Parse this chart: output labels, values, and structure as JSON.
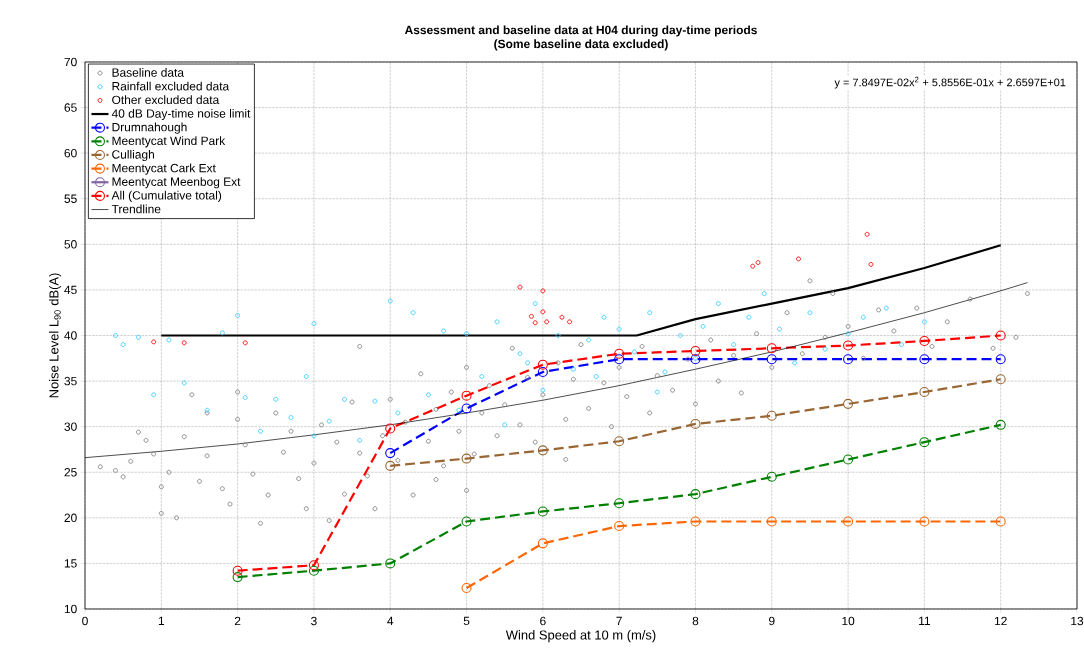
{
  "chart_data": {
    "type": "scatter",
    "title": "Assessment and baseline data at H04 during day-time periods",
    "subtitle": "(Some baseline data excluded)",
    "xlabel": "Wind Speed at 10 m (m/s)",
    "ylabel": "Noise Level L$_{90}$ dB(A)",
    "xlim": [
      0,
      13
    ],
    "ylim": [
      10,
      70
    ],
    "xticks": [
      0,
      1,
      2,
      3,
      4,
      5,
      6,
      7,
      8,
      9,
      10,
      11,
      12,
      13
    ],
    "yticks": [
      10,
      15,
      20,
      25,
      30,
      35,
      40,
      45,
      50,
      55,
      60,
      65,
      70
    ],
    "grid": true,
    "legend": "top left",
    "annotations": [
      "y = 7.8497E-02x$^{2}$ + 5.8556E-01x + 2.6597E+01"
    ],
    "series": [
      {
        "name": "Baseline data",
        "color": "#808080",
        "marker": "circle",
        "x": [
          0.2,
          0.4,
          0.5,
          0.6,
          0.7,
          0.8,
          0.9,
          1.0,
          1.0,
          1.1,
          1.2,
          1.3,
          1.4,
          1.5,
          1.6,
          1.8,
          1.9,
          2.0,
          2.1,
          2.2,
          2.3,
          2.4,
          2.5,
          2.6,
          2.7,
          2.8,
          2.9,
          3.0,
          3.1,
          3.2,
          3.3,
          3.4,
          3.5,
          3.6,
          3.7,
          3.8,
          3.9,
          4.0,
          4.1,
          4.2,
          4.3,
          4.4,
          4.5,
          4.6,
          4.7,
          4.8,
          4.9,
          5.0,
          5.1,
          5.2,
          5.3,
          5.4,
          5.5,
          5.6,
          5.7,
          5.8,
          5.9,
          6.0,
          6.2,
          6.3,
          6.4,
          6.5,
          6.6,
          6.8,
          6.9,
          7.0,
          7.1,
          7.3,
          7.4,
          7.5,
          7.7,
          7.9,
          8.0,
          8.2,
          8.3,
          8.5,
          8.6,
          8.8,
          9.0,
          9.2,
          9.4,
          9.5,
          9.7,
          9.8,
          10.0,
          10.2,
          10.4,
          10.6,
          10.9,
          11.1,
          11.3,
          11.6,
          11.9,
          12.2,
          12.35,
          3.6,
          2.0,
          1.6,
          5.0,
          4.6,
          6.3
        ],
        "values": [
          25.6,
          25.2,
          24.5,
          26.2,
          29.4,
          28.5,
          27.0,
          23.4,
          20.5,
          25.0,
          20.0,
          28.9,
          33.5,
          24.0,
          26.8,
          23.2,
          21.5,
          30.8,
          28.0,
          24.8,
          19.4,
          22.5,
          31.5,
          27.2,
          29.5,
          24.3,
          21.0,
          26.0,
          30.2,
          19.7,
          28.3,
          22.6,
          32.7,
          27.1,
          24.6,
          21.0,
          29.0,
          33.0,
          26.3,
          30.5,
          22.5,
          35.8,
          28.4,
          31.9,
          25.7,
          33.8,
          29.5,
          36.5,
          27.0,
          31.5,
          34.5,
          29.0,
          32.4,
          38.6,
          30.2,
          35.4,
          28.3,
          33.5,
          37.0,
          30.8,
          35.2,
          39.0,
          32.0,
          34.8,
          30.0,
          36.5,
          33.3,
          38.8,
          31.5,
          35.6,
          34.0,
          37.4,
          32.5,
          39.5,
          35.0,
          37.8,
          33.7,
          40.2,
          36.5,
          42.5,
          38.0,
          46.0,
          39.8,
          44.6,
          41.0,
          37.5,
          42.8,
          40.5,
          43.0,
          38.8,
          41.5,
          44.0,
          38.6,
          39.8,
          44.6,
          38.8,
          33.8,
          31.5,
          23.0,
          24.2,
          26.4
        ]
      },
      {
        "name": "Rainfall excluded data",
        "color": "#33ccff",
        "marker": "circle",
        "x": [
          0.4,
          0.5,
          0.7,
          0.9,
          1.1,
          1.3,
          1.6,
          1.8,
          2.0,
          2.1,
          2.3,
          2.5,
          2.7,
          2.9,
          3.0,
          3.2,
          3.4,
          3.6,
          3.8,
          4.0,
          4.1,
          4.3,
          4.5,
          4.7,
          4.9,
          5.0,
          5.2,
          5.4,
          5.5,
          5.7,
          5.9,
          6.0,
          6.2,
          6.4,
          6.6,
          6.8,
          7.0,
          7.2,
          7.4,
          7.6,
          7.8,
          8.0,
          8.1,
          8.3,
          8.5,
          8.7,
          8.9,
          9.1,
          9.3,
          9.5,
          9.7,
          10.0,
          10.2,
          10.7,
          11.0,
          5.8,
          6.7,
          3.0,
          7.5,
          10.5
        ],
        "values": [
          40.0,
          39.0,
          39.8,
          33.5,
          39.5,
          34.8,
          31.8,
          40.3,
          42.2,
          33.2,
          29.5,
          33.0,
          31.0,
          35.5,
          41.3,
          30.6,
          33.0,
          28.5,
          32.8,
          43.8,
          31.5,
          42.5,
          33.5,
          40.5,
          31.8,
          40.2,
          35.5,
          41.5,
          30.2,
          38.0,
          43.5,
          34.0,
          40.0,
          36.3,
          39.5,
          42.0,
          40.7,
          38.2,
          42.5,
          36.0,
          40.0,
          37.5,
          41.0,
          43.5,
          39.0,
          42.0,
          44.6,
          40.7,
          37.0,
          42.5,
          38.5,
          40.2,
          42.0,
          39.0,
          41.5,
          37.0,
          35.5,
          29.0,
          33.8,
          43.0
        ]
      },
      {
        "name": "Other excluded data",
        "color": "#ff0000",
        "marker": "circle",
        "x": [
          0.9,
          1.3,
          2.1,
          5.7,
          5.85,
          5.9,
          6.0,
          6.0,
          6.05,
          6.25,
          6.35,
          8.75,
          8.82,
          9.35,
          10.25,
          10.3
        ],
        "values": [
          39.3,
          39.2,
          39.2,
          45.3,
          42.1,
          41.4,
          44.9,
          42.6,
          41.5,
          42.0,
          41.5,
          47.6,
          48.0,
          48.4,
          51.1,
          47.8
        ]
      },
      {
        "name": "40 dB Day-time noise limit",
        "type": "line",
        "color": "#000000",
        "marker": "none",
        "line_style": "solid",
        "x": [
          1,
          7.23,
          8,
          9,
          10,
          11,
          12
        ],
        "values": [
          40,
          40,
          41.8,
          43.5,
          45.2,
          47.4,
          49.9
        ]
      },
      {
        "name": "Drumnahough",
        "type": "line",
        "color": "#0000ff",
        "marker": "circle",
        "line_style": "dashed",
        "x": [
          4,
          5,
          6,
          7,
          8,
          9,
          10,
          11,
          12
        ],
        "values": [
          27.1,
          32.0,
          36.0,
          37.4,
          37.4,
          37.4,
          37.4,
          37.4,
          37.4
        ]
      },
      {
        "name": "Meentycat Wind Park",
        "type": "line",
        "color": "#008000",
        "marker": "circle",
        "line_style": "dashed",
        "x": [
          2,
          3,
          4,
          5,
          6,
          7,
          8,
          9,
          10,
          11,
          12
        ],
        "values": [
          13.5,
          14.2,
          15.0,
          19.6,
          20.7,
          21.6,
          22.6,
          24.5,
          26.4,
          28.3,
          30.2
        ]
      },
      {
        "name": "Culliagh",
        "type": "line",
        "color": "#996633",
        "marker": "circle",
        "line_style": "dashed",
        "x": [
          4,
          5,
          6,
          7,
          8,
          9,
          10,
          11,
          12
        ],
        "values": [
          25.7,
          26.5,
          27.4,
          28.4,
          30.3,
          31.2,
          32.5,
          33.8,
          35.2
        ]
      },
      {
        "name": "Meentycat Cark Ext",
        "type": "line",
        "color": "#ff6600",
        "marker": "circle",
        "line_style": "dashed",
        "x": [
          5,
          6,
          7,
          8,
          9,
          10,
          11,
          12
        ],
        "values": [
          12.3,
          17.2,
          19.1,
          19.6,
          19.6,
          19.6,
          19.6,
          19.6
        ]
      },
      {
        "name": "Meentycat Meenbog Ext",
        "type": "line",
        "color": "#8064a2",
        "marker": "circle",
        "line_style": "solid",
        "values": [
          null
        ]
      },
      {
        "name": "All (Cumulative total)",
        "type": "line",
        "color": "#ff0000",
        "marker": "circle",
        "line_style": "dashed",
        "x": [
          2,
          3,
          4,
          5,
          6,
          7,
          8,
          9,
          10,
          11,
          12
        ],
        "values": [
          14.2,
          14.8,
          29.8,
          33.4,
          36.8,
          38.0,
          38.3,
          38.6,
          38.9,
          39.4,
          40.0
        ]
      },
      {
        "name": "Trendline",
        "type": "line",
        "color": "#000000",
        "marker": "none",
        "line_style": "solid",
        "x": [
          0,
          1,
          2,
          3,
          4,
          5,
          6,
          7,
          8,
          9,
          10,
          11,
          12,
          12.35
        ],
        "values": [
          26.6,
          27.3,
          28.1,
          29.1,
          30.2,
          31.5,
          32.9,
          34.5,
          36.3,
          38.2,
          40.3,
          42.5,
          44.9,
          45.8
        ]
      }
    ]
  }
}
